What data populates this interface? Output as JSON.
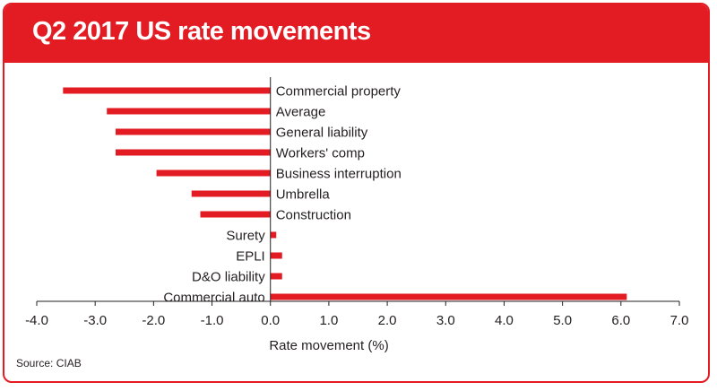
{
  "title": "Q2 2017 US rate movements",
  "source": "Source: CIAB",
  "colors": {
    "accent": "#e31b23",
    "bar": "#e31b23",
    "text": "#231f20"
  },
  "chart_data": {
    "type": "bar",
    "orientation": "horizontal",
    "title": "Q2 2017 US rate movements",
    "xlabel": "Rate movement (%)",
    "ylabel": "",
    "xlim": [
      -4.0,
      7.0
    ],
    "xticks": [
      "-4.0",
      "-3.0",
      "-2.0",
      "-1.0",
      "0.0",
      "1.0",
      "2.0",
      "3.0",
      "4.0",
      "5.0",
      "6.0",
      "7.0"
    ],
    "grid": false,
    "categories": [
      "Commercial property",
      "Average",
      "General liability",
      "Workers' comp",
      "Business interruption",
      "Umbrella",
      "Construction",
      "Surety",
      "EPLI",
      "D&O liability",
      "Commercial auto"
    ],
    "values": [
      -3.55,
      -2.8,
      -2.65,
      -2.65,
      -1.95,
      -1.35,
      -1.2,
      0.1,
      0.2,
      0.2,
      6.1
    ]
  }
}
